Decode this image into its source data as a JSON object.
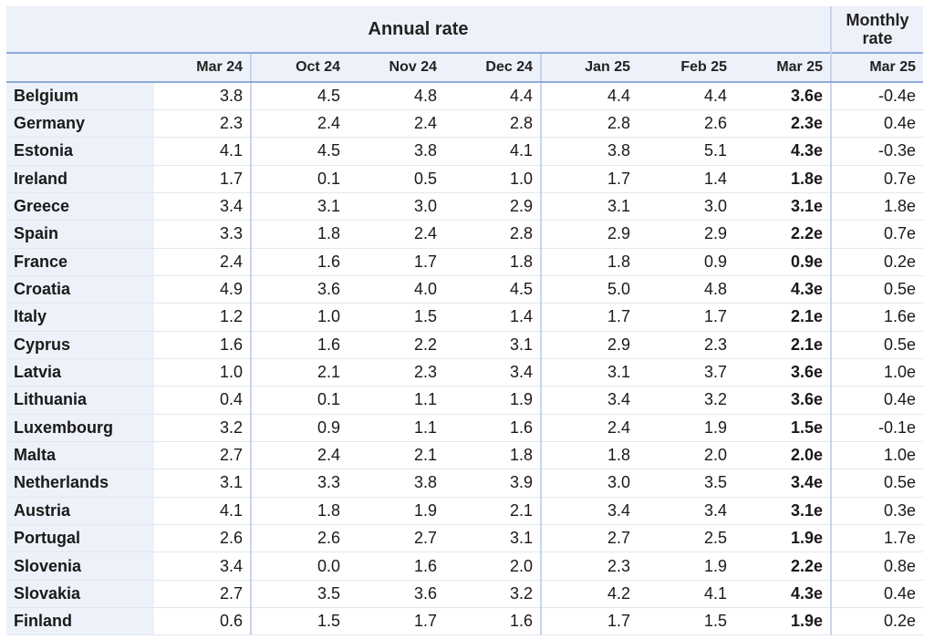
{
  "header": {
    "annual_rate": "Annual rate",
    "monthly_rate_line1": "Monthly",
    "monthly_rate_line2": "rate"
  },
  "columns": [
    "Mar 24",
    "Oct 24",
    "Nov 24",
    "Dec 24",
    "Jan 25",
    "Feb 25",
    "Mar 25",
    "Mar 25"
  ],
  "rows": [
    {
      "country": "Belgium",
      "values": [
        "3.8",
        "4.5",
        "4.8",
        "4.4",
        "4.4",
        "4.4",
        "3.6e",
        "-0.4e"
      ]
    },
    {
      "country": "Germany",
      "values": [
        "2.3",
        "2.4",
        "2.4",
        "2.8",
        "2.8",
        "2.6",
        "2.3e",
        "0.4e"
      ]
    },
    {
      "country": "Estonia",
      "values": [
        "4.1",
        "4.5",
        "3.8",
        "4.1",
        "3.8",
        "5.1",
        "4.3e",
        "-0.3e"
      ]
    },
    {
      "country": "Ireland",
      "values": [
        "1.7",
        "0.1",
        "0.5",
        "1.0",
        "1.7",
        "1.4",
        "1.8e",
        "0.7e"
      ]
    },
    {
      "country": "Greece",
      "values": [
        "3.4",
        "3.1",
        "3.0",
        "2.9",
        "3.1",
        "3.0",
        "3.1e",
        "1.8e"
      ]
    },
    {
      "country": "Spain",
      "values": [
        "3.3",
        "1.8",
        "2.4",
        "2.8",
        "2.9",
        "2.9",
        "2.2e",
        "0.7e"
      ]
    },
    {
      "country": "France",
      "values": [
        "2.4",
        "1.6",
        "1.7",
        "1.8",
        "1.8",
        "0.9",
        "0.9e",
        "0.2e"
      ]
    },
    {
      "country": "Croatia",
      "values": [
        "4.9",
        "3.6",
        "4.0",
        "4.5",
        "5.0",
        "4.8",
        "4.3e",
        "0.5e"
      ]
    },
    {
      "country": "Italy",
      "values": [
        "1.2",
        "1.0",
        "1.5",
        "1.4",
        "1.7",
        "1.7",
        "2.1e",
        "1.6e"
      ]
    },
    {
      "country": "Cyprus",
      "values": [
        "1.6",
        "1.6",
        "2.2",
        "3.1",
        "2.9",
        "2.3",
        "2.1e",
        "0.5e"
      ]
    },
    {
      "country": "Latvia",
      "values": [
        "1.0",
        "2.1",
        "2.3",
        "3.4",
        "3.1",
        "3.7",
        "3.6e",
        "1.0e"
      ]
    },
    {
      "country": "Lithuania",
      "values": [
        "0.4",
        "0.1",
        "1.1",
        "1.9",
        "3.4",
        "3.2",
        "3.6e",
        "0.4e"
      ]
    },
    {
      "country": "Luxembourg",
      "values": [
        "3.2",
        "0.9",
        "1.1",
        "1.6",
        "2.4",
        "1.9",
        "1.5e",
        "-0.1e"
      ]
    },
    {
      "country": "Malta",
      "values": [
        "2.7",
        "2.4",
        "2.1",
        "1.8",
        "1.8",
        "2.0",
        "2.0e",
        "1.0e"
      ]
    },
    {
      "country": "Netherlands",
      "values": [
        "3.1",
        "3.3",
        "3.8",
        "3.9",
        "3.0",
        "3.5",
        "3.4e",
        "0.5e"
      ]
    },
    {
      "country": "Austria",
      "values": [
        "4.1",
        "1.8",
        "1.9",
        "2.1",
        "3.4",
        "3.4",
        "3.1e",
        "0.3e"
      ]
    },
    {
      "country": "Portugal",
      "values": [
        "2.6",
        "2.6",
        "2.7",
        "3.1",
        "2.7",
        "2.5",
        "1.9e",
        "1.7e"
      ]
    },
    {
      "country": "Slovenia",
      "values": [
        "3.4",
        "0.0",
        "1.6",
        "2.0",
        "2.3",
        "1.9",
        "2.2e",
        "0.8e"
      ]
    },
    {
      "country": "Slovakia",
      "values": [
        "2.7",
        "3.5",
        "3.6",
        "3.2",
        "4.2",
        "4.1",
        "4.3e",
        "0.4e"
      ]
    },
    {
      "country": "Finland",
      "values": [
        "0.6",
        "1.5",
        "1.7",
        "1.6",
        "1.7",
        "1.5",
        "1.9e",
        "0.2e"
      ]
    }
  ],
  "chart_data": {
    "type": "table",
    "column_groups": [
      {
        "label": "Annual rate",
        "columns": [
          "Mar 24",
          "Oct 24",
          "Nov 24",
          "Dec 24",
          "Jan 25",
          "Feb 25",
          "Mar 25"
        ]
      },
      {
        "label": "Monthly rate",
        "columns": [
          "Mar 25"
        ]
      }
    ],
    "row_labels": [
      "Belgium",
      "Germany",
      "Estonia",
      "Ireland",
      "Greece",
      "Spain",
      "France",
      "Croatia",
      "Italy",
      "Cyprus",
      "Latvia",
      "Lithuania",
      "Luxembourg",
      "Malta",
      "Netherlands",
      "Austria",
      "Portugal",
      "Slovenia",
      "Slovakia",
      "Finland"
    ],
    "bold_columns": [
      6
    ],
    "colors": {
      "header_bg": "#edf1fa",
      "rule": "#8faadc",
      "text": "#1a1a1a"
    }
  }
}
